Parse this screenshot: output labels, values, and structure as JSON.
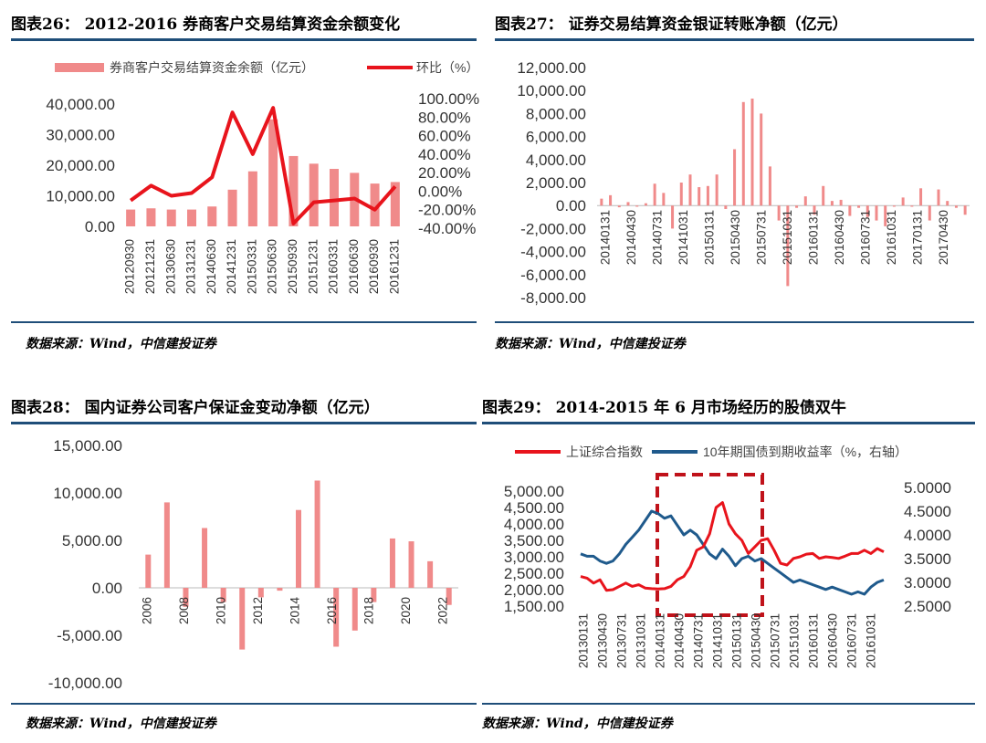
{
  "colors": {
    "bar": "#f08a8a",
    "red": "#e8141c",
    "blue": "#1f5a8c",
    "rule": "#1f4e79"
  },
  "chart_data": [
    {
      "id": "c26",
      "type": "bar",
      "title": "图表26： 2012-2016 券商客户交易结算资金余额变化",
      "source": "数据来源：Wind，中信建投证券",
      "categories": [
        "20120930",
        "20121231",
        "20130630",
        "20131231",
        "20140630",
        "20141231",
        "20150331",
        "20150630",
        "20150930",
        "20151231",
        "20160331",
        "20160630",
        "20160930",
        "20161231"
      ],
      "series": [
        {
          "name": "券商客户交易结算资金余额（亿元）",
          "kind": "bar",
          "axis": "left",
          "values": [
            5500,
            5900,
            5500,
            5500,
            6500,
            12000,
            18000,
            35000,
            23000,
            20500,
            18800,
            17500,
            14000,
            14500
          ]
        },
        {
          "name": "环比（%）",
          "kind": "line",
          "axis": "right",
          "values": [
            -10,
            6,
            -5,
            -2,
            15,
            85,
            40,
            90,
            -35,
            -12,
            -10,
            -8,
            -20,
            5
          ]
        }
      ],
      "yticks_left": [
        "40,000.00",
        "30,000.00",
        "20,000.00",
        "10,000.00",
        "0.00"
      ],
      "yticks_right": [
        "100.00%",
        "80.00%",
        "60.00%",
        "40.00%",
        "20.00%",
        "0.00%",
        "-20.00%",
        "-40.00%"
      ],
      "ylim_left": [
        0,
        40000
      ],
      "ylim_right": [
        -40,
        100
      ]
    },
    {
      "id": "c27",
      "type": "bar",
      "title": "图表27： 证券交易结算资金银证转账净额（亿元）",
      "source": "数据来源：Wind，中信建投证券",
      "x_labels": [
        "20140131",
        "20140430",
        "20140731",
        "20141031",
        "20150131",
        "20150430",
        "20150731",
        "20151031",
        "20160131",
        "20160430",
        "20160731",
        "20161031",
        "20170131",
        "20170430"
      ],
      "values": [
        600,
        900,
        -150,
        300,
        -100,
        200,
        1900,
        1100,
        -2000,
        2000,
        2700,
        1600,
        1700,
        2700,
        -300,
        4900,
        9000,
        9300,
        8000,
        3400,
        -1300,
        -7000,
        -200,
        800,
        -800,
        1700,
        400,
        500,
        -900,
        -200,
        -1000,
        -1300,
        -1800,
        -100,
        700,
        -100,
        1500,
        -1300,
        1400,
        400,
        -200,
        -800
      ],
      "yticks": [
        "12,000.00",
        "10,000.00",
        "8,000.00",
        "6,000.00",
        "4,000.00",
        "2,000.00",
        "0.00",
        "-2,000.00",
        "-4,000.00",
        "-6,000.00",
        "-8,000.00"
      ],
      "ylim": [
        -8000,
        12000
      ]
    },
    {
      "id": "c28",
      "type": "bar",
      "title": "图表28： 国内证券公司客户保证金变动净额（亿元）",
      "source": "数据来源：Wind，中信建投证券",
      "x_labels": [
        "2006",
        "2008",
        "2010",
        "2012",
        "2014",
        "2016",
        "2018",
        "2020",
        "2022"
      ],
      "values": [
        3500,
        9000,
        -2000,
        6300,
        -1500,
        -6500,
        -1000,
        -300,
        8200,
        11300,
        -6200,
        -4500,
        -1500,
        5200,
        4900,
        2800,
        -1800
      ],
      "yticks": [
        "15,000.00",
        "10,000.00",
        "5,000.00",
        "0.00",
        "-5,000.00",
        "-10,000.00"
      ],
      "ylim": [
        -10000,
        15000
      ]
    },
    {
      "id": "c29",
      "type": "line",
      "title": "图表29： 2014-2015 年 6 月市场经历的股债双牛",
      "source": "数据来源：Wind，中信建投证券",
      "x_labels": [
        "20130131",
        "20130430",
        "20130731",
        "20131031",
        "20140131",
        "20140430",
        "20140731",
        "20141031",
        "20150131",
        "20150430",
        "20150731",
        "20151031",
        "20160131",
        "20160430",
        "20160731",
        "20161031"
      ],
      "series": [
        {
          "name": "上证综合指数",
          "axis": "left",
          "values": [
            2400,
            2350,
            2200,
            2300,
            1980,
            2000,
            2100,
            2200,
            2100,
            2150,
            2050,
            2030,
            2020,
            2030,
            2100,
            2300,
            2400,
            2700,
            3200,
            3300,
            3700,
            4500,
            4650,
            4000,
            3700,
            3500,
            3100,
            3300,
            3500,
            3550,
            3200,
            2800,
            2750,
            2950,
            3000,
            3080,
            3100,
            2950,
            3000,
            2980,
            2950,
            3020,
            3100,
            3100,
            3200,
            3100,
            3250,
            3150
          ]
        },
        {
          "name": "10年期国债到期收益率（%，右轴）",
          "axis": "right",
          "values": [
            3.6,
            3.55,
            3.55,
            3.45,
            3.4,
            3.45,
            3.6,
            3.8,
            3.95,
            4.1,
            4.3,
            4.5,
            4.45,
            4.35,
            4.4,
            4.2,
            4.0,
            4.1,
            4.0,
            3.8,
            3.6,
            3.5,
            3.7,
            3.55,
            3.35,
            3.5,
            3.55,
            3.45,
            3.5,
            3.4,
            3.3,
            3.2,
            3.1,
            3.0,
            3.05,
            3.0,
            2.95,
            2.9,
            2.85,
            2.9,
            2.85,
            2.8,
            2.75,
            2.8,
            2.75,
            2.9,
            3.0,
            3.05
          ]
        }
      ],
      "yticks_left": [
        "5,000.00",
        "4,500.00",
        "4,000.00",
        "3,500.00",
        "3,000.00",
        "2,500.00",
        "2,000.00",
        "1,500.00"
      ],
      "yticks_right": [
        "5.0000",
        "4.5000",
        "4.0000",
        "3.5000",
        "3.0000",
        "2.5000"
      ],
      "ylim_left": [
        1500,
        5000
      ],
      "ylim_right": [
        2.5,
        5
      ]
    }
  ]
}
